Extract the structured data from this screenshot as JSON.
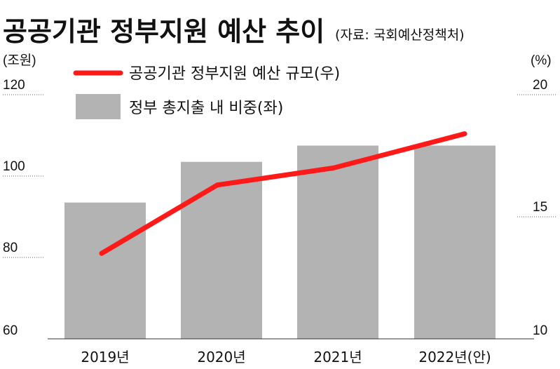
{
  "header": {
    "title": "공공기관 정부지원 예산 추이",
    "source": "(자료: 국회예산정책처)"
  },
  "chart_data": {
    "type": "bar",
    "categories": [
      "2019년",
      "2020년",
      "2021년",
      "2022년(안)"
    ],
    "left_axis": {
      "unit": "(조원)",
      "ticks": [
        120,
        100,
        80,
        60
      ],
      "range": [
        60,
        120
      ]
    },
    "right_axis": {
      "unit": "(%)",
      "ticks": [
        20,
        15,
        10
      ],
      "range": [
        10,
        20
      ]
    },
    "series": [
      {
        "name": "정부 총지출 내 비중(좌)",
        "type": "bar",
        "axis": "left",
        "color": "#b3b3b3",
        "values": [
          93.5,
          103.5,
          107.5,
          107.5
        ]
      },
      {
        "name": "공공기관 정부지원 예산 규모(우)",
        "type": "line",
        "axis": "right",
        "color": "#ff1a1a",
        "values": [
          13.5,
          16.3,
          17.0,
          18.4
        ]
      }
    ],
    "legend": "top-left",
    "grid": false
  }
}
